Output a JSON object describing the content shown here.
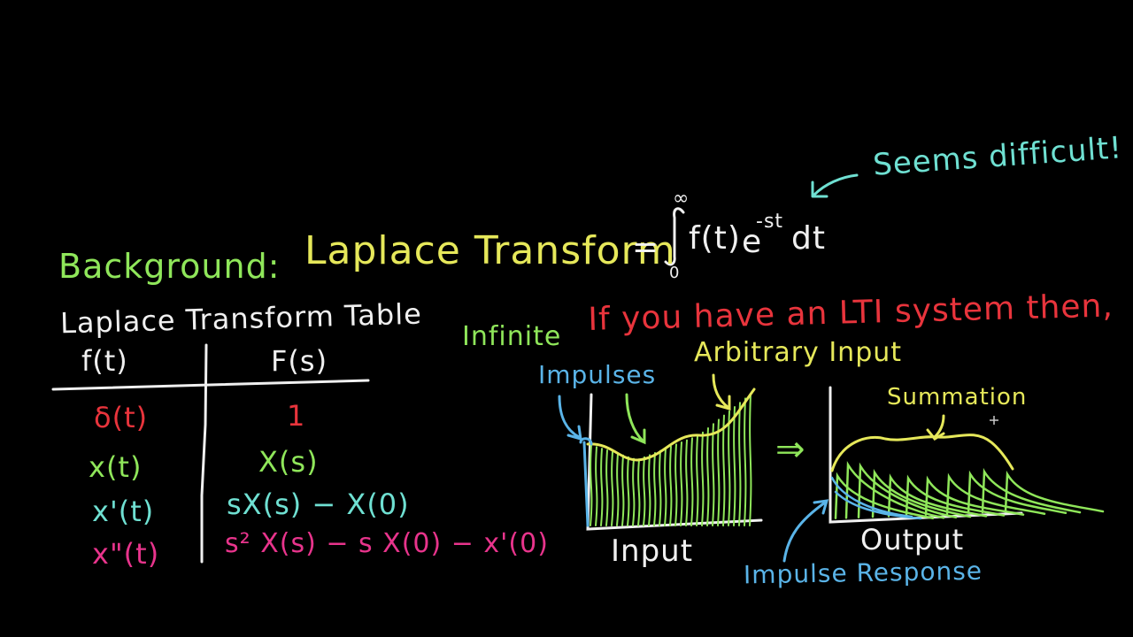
{
  "colors": {
    "background": "#000000",
    "yellow": "#e6e85a",
    "green": "#8fe65a",
    "cyan": "#6fe0d2",
    "blue": "#5ab4e8",
    "red": "#e8343c",
    "magenta": "#e8348c",
    "white": "#f0f0f0"
  },
  "header": {
    "note": "Seems difficult!",
    "background_label": "Background:",
    "laplace_title": "Laplace Transform",
    "equals": "=",
    "integral_upper": "∞",
    "integral_lower": "0",
    "integrand_f": "f(t)",
    "integrand_e": "e",
    "exponent": "-st",
    "integrand_dt": "dt"
  },
  "table": {
    "title": "Laplace Transform Table",
    "col_time": "f(t)",
    "col_freq": "F(s)",
    "rows": [
      {
        "time": "δ(t)",
        "freq": "1",
        "color": "#e8343c"
      },
      {
        "time": "x(t)",
        "freq": "X(s)",
        "color": "#8fe65a"
      },
      {
        "time": "x'(t)",
        "freq": "sX(s) − X(0)",
        "color": "#6fe0d2"
      },
      {
        "time": "x\"(t)",
        "freq": "s² X(s) − s X(0) − x'(0)",
        "color": "#e8348c"
      }
    ]
  },
  "lti": {
    "infinite": "Infinite",
    "statement": "If you have an LTI system then,",
    "impulses": "Impulses",
    "arbitrary_input": "Arbitrary Input",
    "summation": "Summation",
    "arrow": "⇒",
    "input_label": "Input",
    "output_label": "Output",
    "impulse_response": "Impulse Response"
  }
}
